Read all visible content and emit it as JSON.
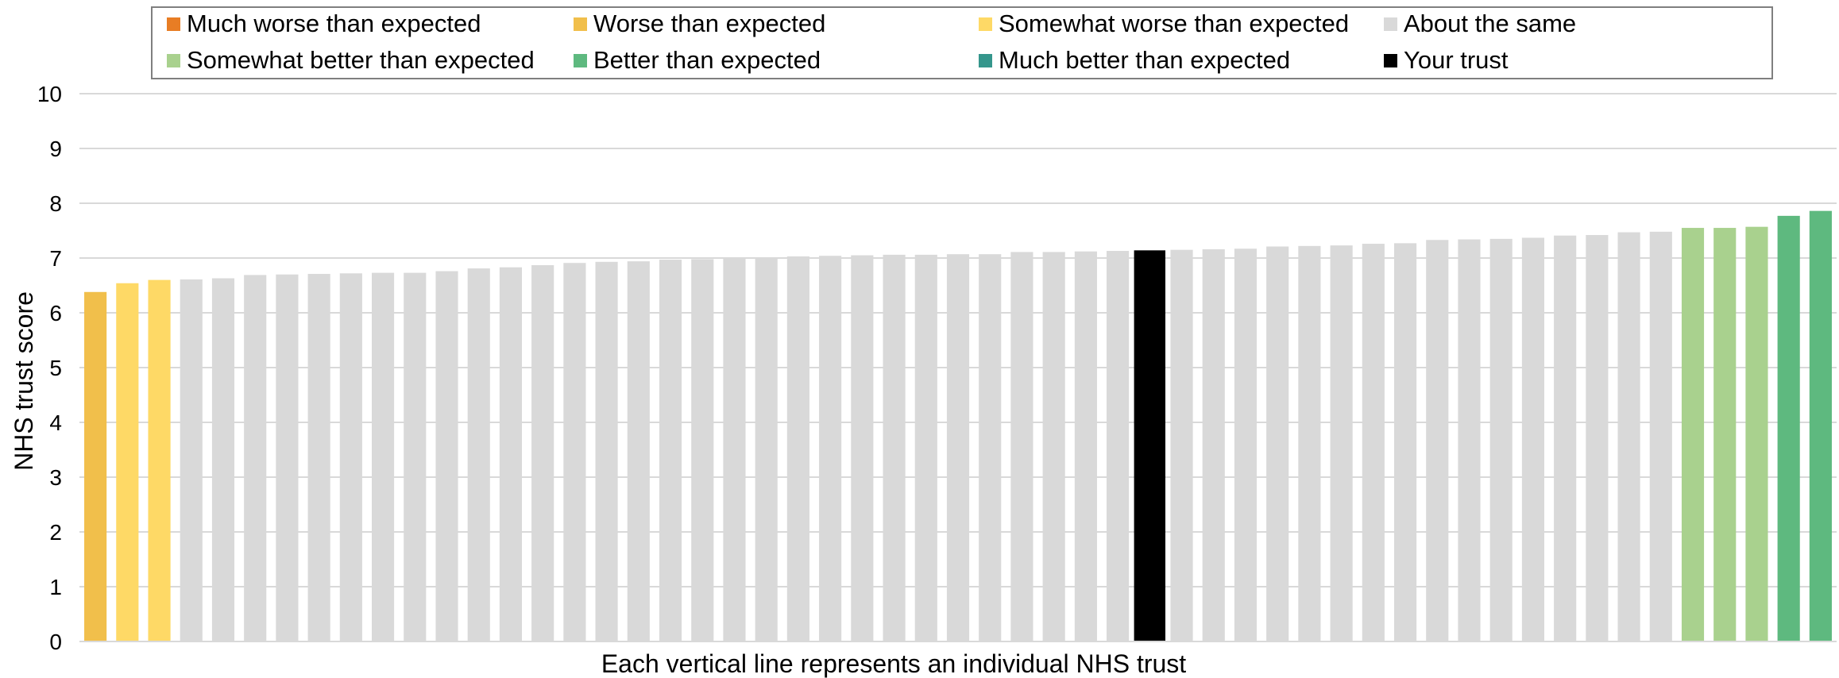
{
  "legend": [
    {
      "label": "Much worse than expected",
      "color": "#e87d24"
    },
    {
      "label": "Worse than expected",
      "color": "#f1bf4b"
    },
    {
      "label": "Somewhat worse than expected",
      "color": "#fed966"
    },
    {
      "label": "About the same",
      "color": "#d9d9d9"
    },
    {
      "label": "Somewhat better than expected",
      "color": "#a9d18e"
    },
    {
      "label": "Better than expected",
      "color": "#5eb97f"
    },
    {
      "label": "Much better than expected",
      "color": "#35968c"
    },
    {
      "label": "Your trust",
      "color": "#000000"
    }
  ],
  "chart_data": {
    "type": "bar",
    "xlabel": "Each vertical line represents an individual NHS trust",
    "ylabel": "NHS trust score",
    "ylim": [
      0,
      10
    ],
    "yticks": [
      0,
      1,
      2,
      3,
      4,
      5,
      6,
      7,
      8,
      9,
      10
    ],
    "grid": true,
    "legend_position": "top",
    "values": [
      6.38,
      6.54,
      6.6,
      6.61,
      6.63,
      6.69,
      6.7,
      6.71,
      6.72,
      6.73,
      6.73,
      6.76,
      6.81,
      6.83,
      6.87,
      6.91,
      6.93,
      6.94,
      6.97,
      6.98,
      7.0,
      7.01,
      7.03,
      7.04,
      7.05,
      7.06,
      7.06,
      7.07,
      7.07,
      7.11,
      7.11,
      7.12,
      7.13,
      7.14,
      7.15,
      7.16,
      7.17,
      7.21,
      7.22,
      7.23,
      7.26,
      7.27,
      7.33,
      7.34,
      7.35,
      7.37,
      7.41,
      7.42,
      7.47,
      7.48,
      7.55,
      7.55,
      7.57,
      7.77,
      7.86
    ],
    "categories": [
      "Worse than expected",
      "Somewhat worse than expected",
      "Somewhat worse than expected",
      "About the same",
      "About the same",
      "About the same",
      "About the same",
      "About the same",
      "About the same",
      "About the same",
      "About the same",
      "About the same",
      "About the same",
      "About the same",
      "About the same",
      "About the same",
      "About the same",
      "About the same",
      "About the same",
      "About the same",
      "About the same",
      "About the same",
      "About the same",
      "About the same",
      "About the same",
      "About the same",
      "About the same",
      "About the same",
      "About the same",
      "About the same",
      "About the same",
      "About the same",
      "About the same",
      "Your trust",
      "About the same",
      "About the same",
      "About the same",
      "About the same",
      "About the same",
      "About the same",
      "About the same",
      "About the same",
      "About the same",
      "About the same",
      "About the same",
      "About the same",
      "About the same",
      "About the same",
      "About the same",
      "About the same",
      "Somewhat better than expected",
      "Somewhat better than expected",
      "Somewhat better than expected",
      "Better than expected",
      "Better than expected"
    ]
  }
}
